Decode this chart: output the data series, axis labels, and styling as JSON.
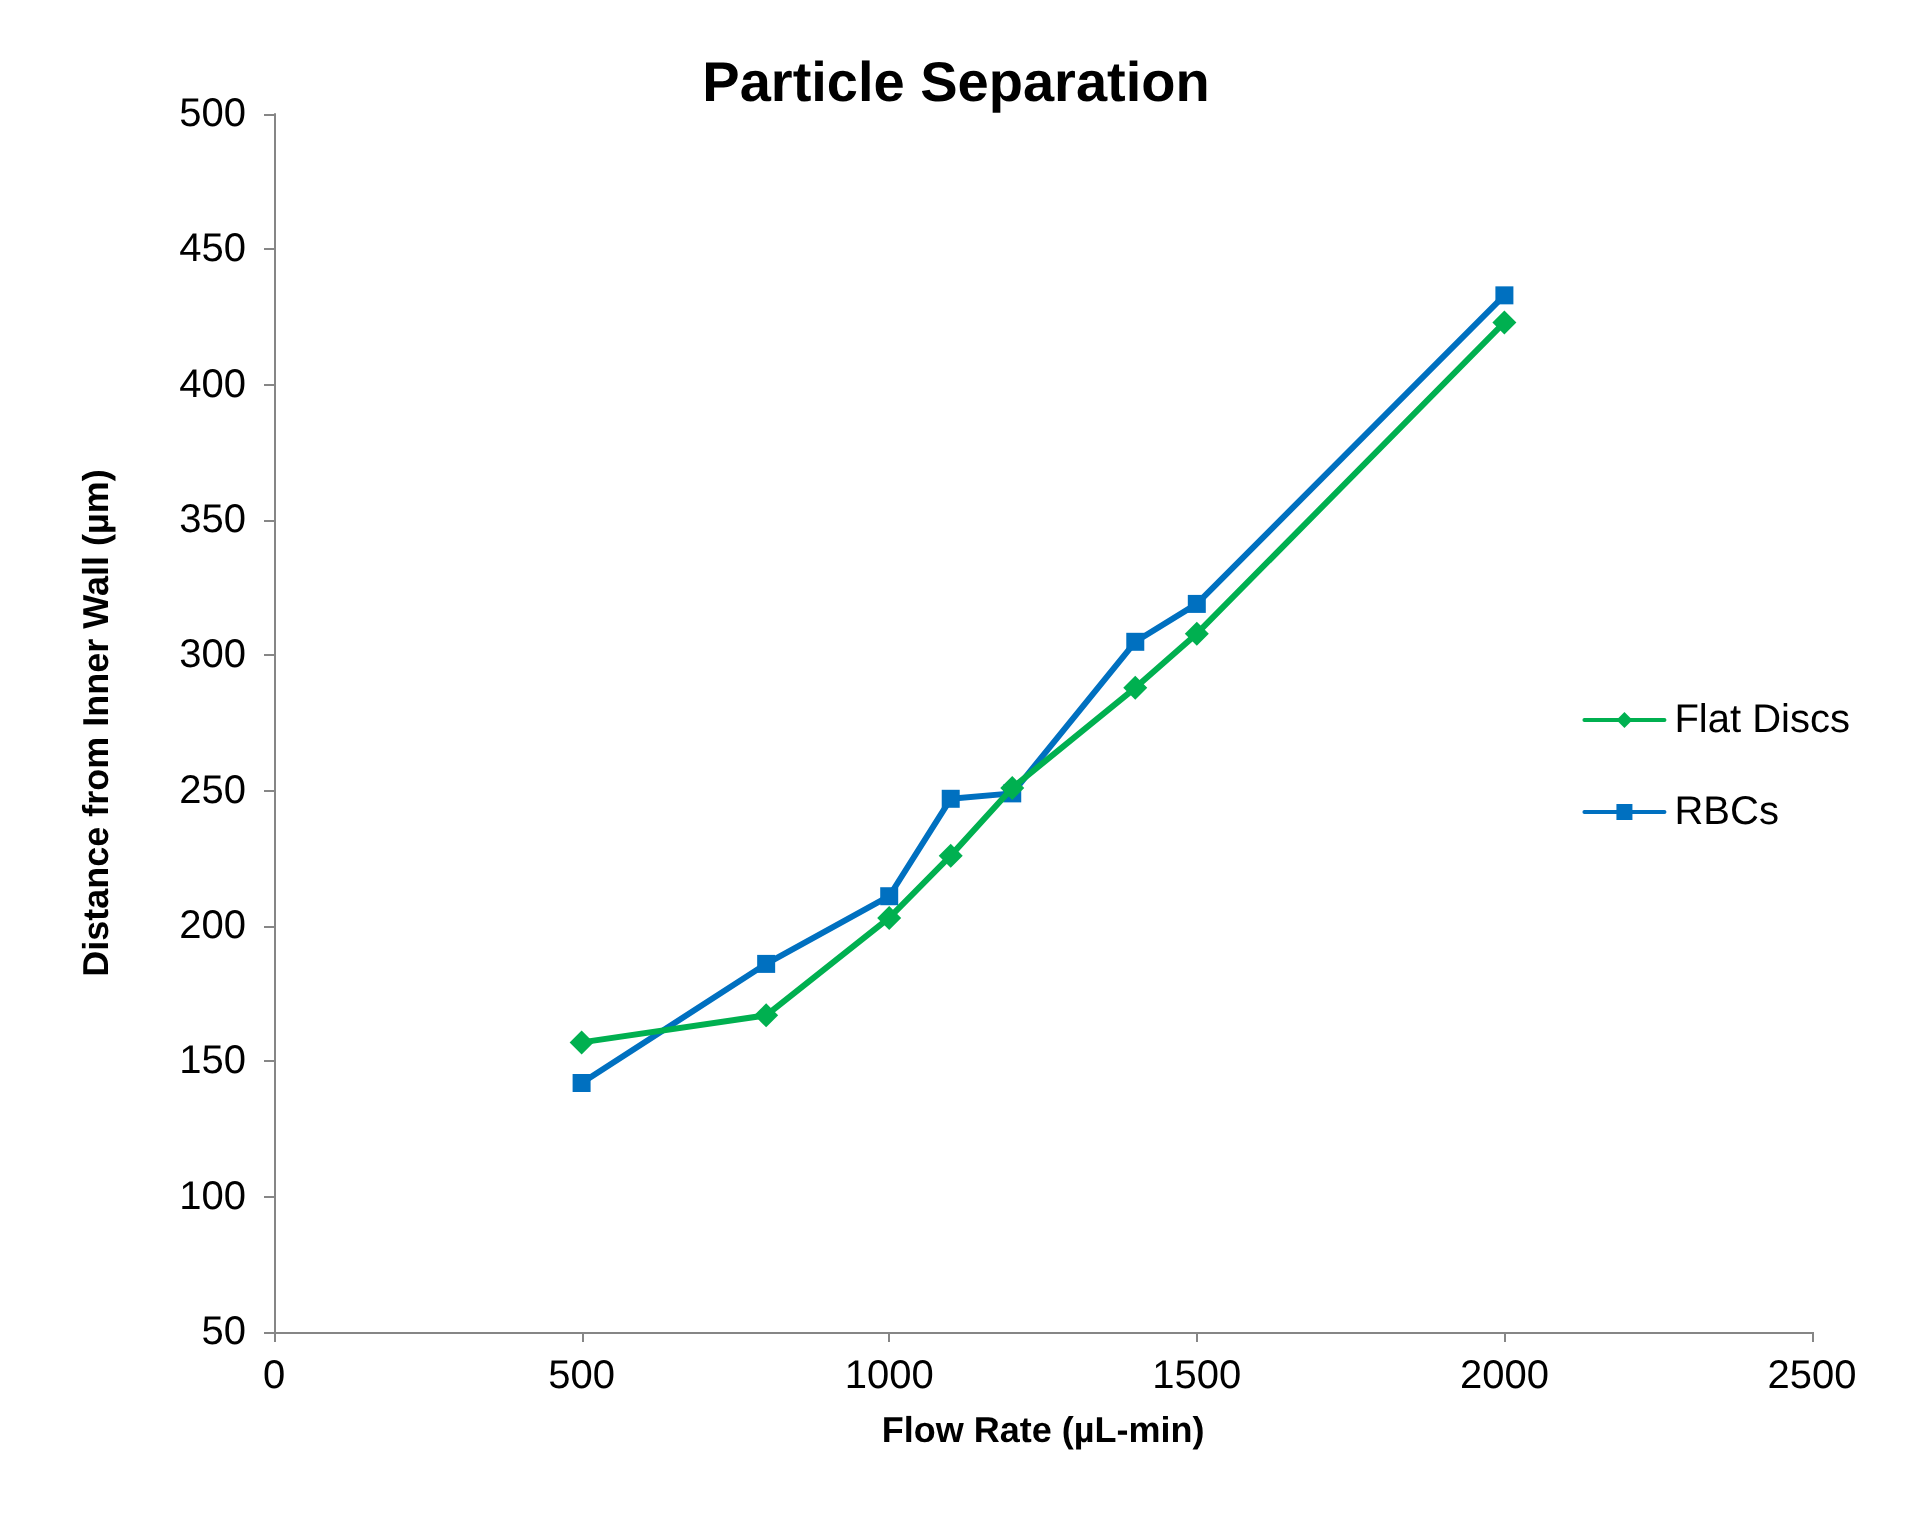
{
  "chart_data": {
    "type": "line",
    "title": "Particle Separation",
    "xlabel": "Flow Rate (µL-min)",
    "ylabel": "Distance from Inner Wall (µm)",
    "x": [
      500,
      800,
      1000,
      1100,
      1200,
      1400,
      1500,
      2000
    ],
    "series": [
      {
        "name": "Flat Discs",
        "color": "#00b050",
        "marker": "diamond",
        "values": [
          157,
          167,
          203,
          226,
          251,
          288,
          308,
          423
        ]
      },
      {
        "name": "RBCs",
        "color": "#0070c0",
        "marker": "square",
        "values": [
          142,
          186,
          211,
          247,
          249,
          305,
          319,
          433
        ]
      }
    ],
    "xlim": [
      0,
      2500
    ],
    "xticks": [
      0,
      500,
      1000,
      1500,
      2000,
      2500
    ],
    "ylim": [
      50,
      500
    ],
    "yticks": [
      50,
      100,
      150,
      200,
      250,
      300,
      350,
      400,
      450,
      500
    ],
    "grid": false,
    "legend": "right",
    "line_style": "solid"
  }
}
